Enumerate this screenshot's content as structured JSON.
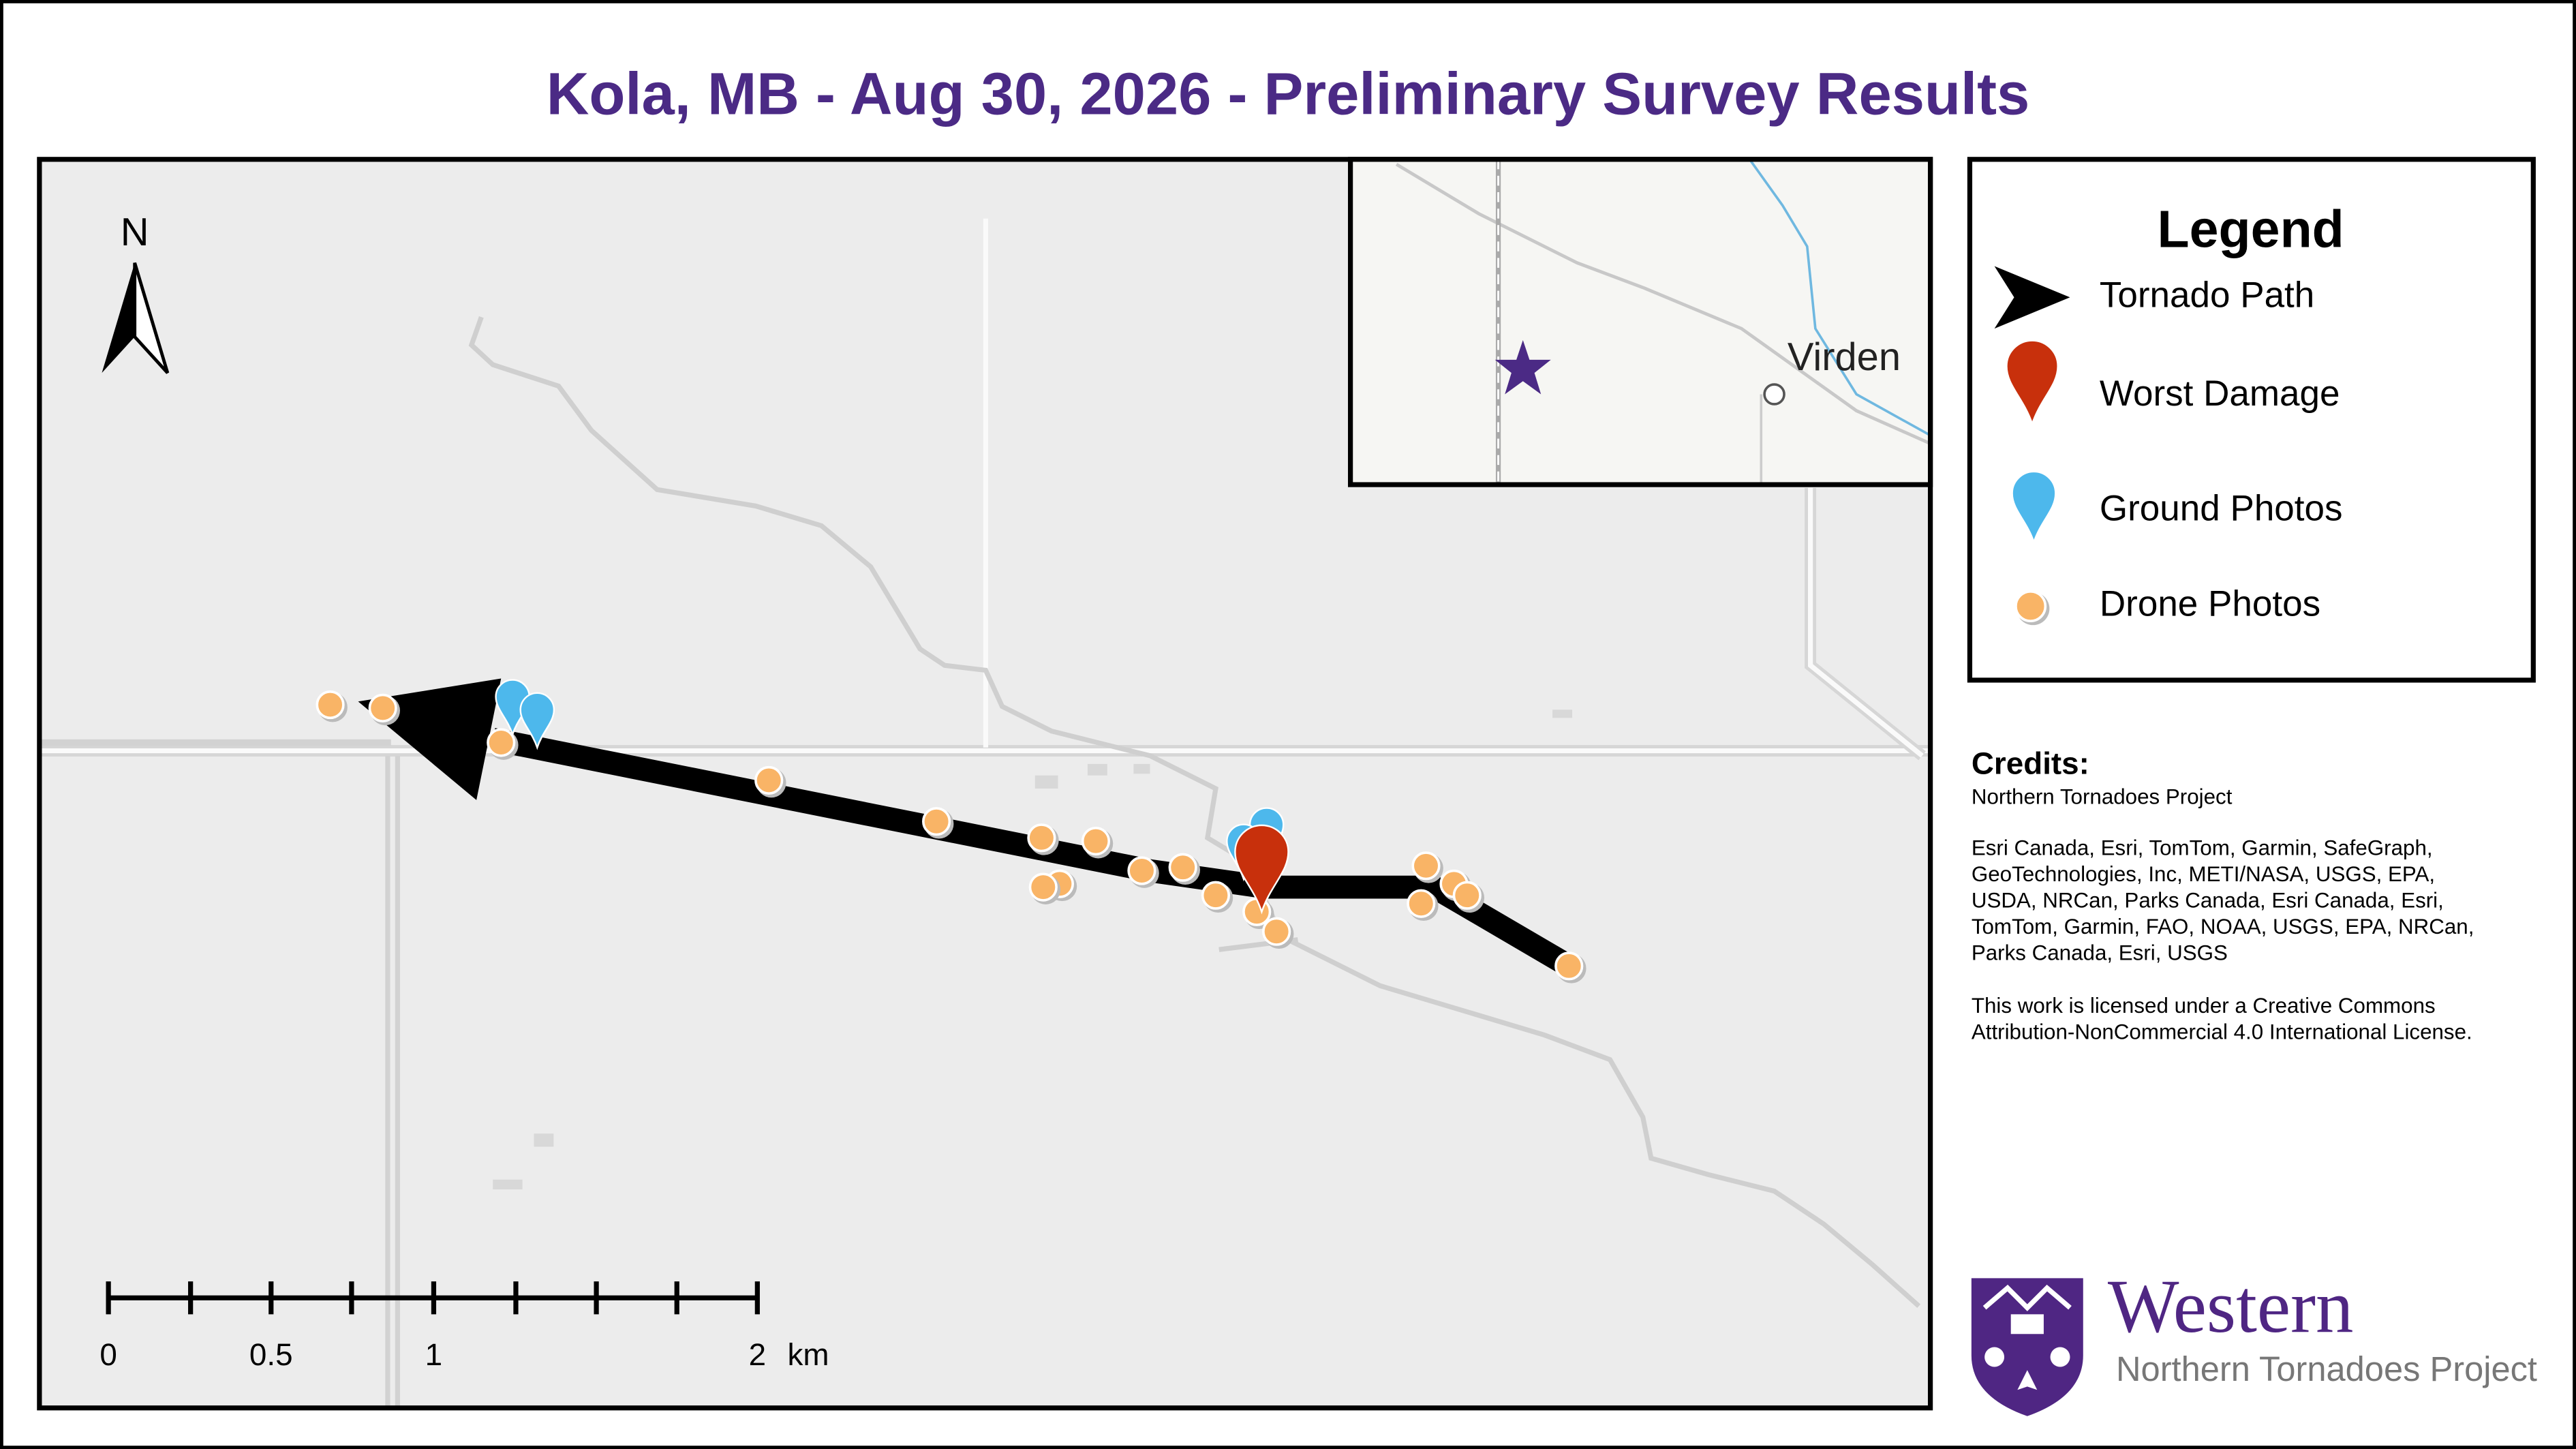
{
  "title": "Kola, MB - Aug 30, 2026 - Preliminary Survey Results",
  "north_label": "N",
  "scale_bar": {
    "labels": [
      "0",
      "0.5",
      "1",
      "2",
      "km"
    ]
  },
  "inset": {
    "label": "Virden"
  },
  "legend": {
    "title": "Legend",
    "items": [
      {
        "label": "Tornado Path"
      },
      {
        "label": "Worst Damage"
      },
      {
        "label": "Ground Photos"
      },
      {
        "label": "Drone Photos"
      }
    ]
  },
  "credits": {
    "heading": "Credits:",
    "source": "Northern Tornadoes Project",
    "attribution_lines": [
      "Esri Canada, Esri, TomTom, Garmin, SafeGraph,",
      "GeoTechnologies, Inc, METI/NASA, USGS, EPA,",
      "USDA, NRCan, Parks Canada, Esri Canada, Esri,",
      "TomTom, Garmin, FAO, NOAA, USGS, EPA, NRCan,",
      "Parks Canada, Esri, USGS"
    ],
    "license_lines": [
      "This work is licensed under a Creative Commons",
      "Attribution-NonCommercial 4.0 International License."
    ]
  },
  "logo": {
    "name": "Western",
    "subtitle": "Northern Tornadoes Project"
  }
}
